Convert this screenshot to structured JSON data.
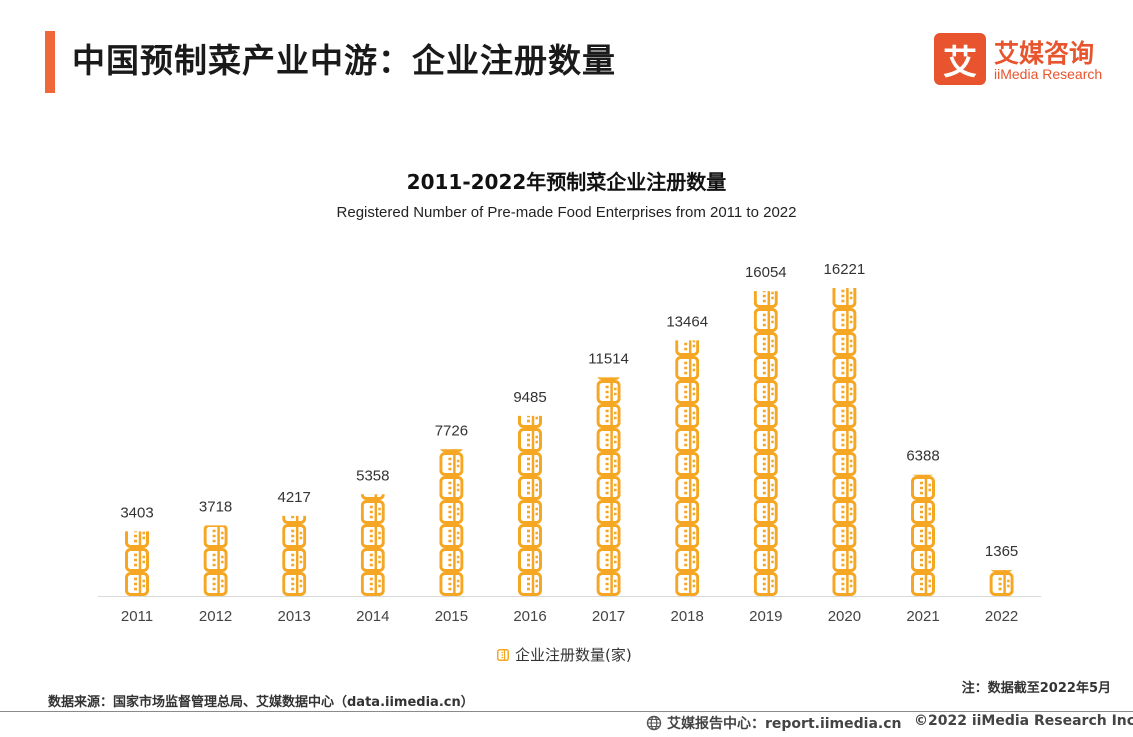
{
  "header": {
    "title": "中国预制菜产业中游：企业注册数量",
    "accent_color": "#F0683A"
  },
  "logo": {
    "mark": "艾",
    "name_cn": "艾媒咨询",
    "name_en": "iiMedia Research",
    "color": "#E8542D"
  },
  "chart_data": {
    "type": "bar",
    "title": "2011-2022年预制菜企业注册数量",
    "subtitle": "Registered Number of Pre-made Food Enterprises from 2011 to 2022",
    "categories": [
      "2011",
      "2012",
      "2013",
      "2014",
      "2015",
      "2016",
      "2017",
      "2018",
      "2019",
      "2020",
      "2021",
      "2022"
    ],
    "series": [
      {
        "name": "企业注册数量(家)",
        "values": [
          3403,
          3718,
          4217,
          5358,
          7726,
          9485,
          11514,
          13464,
          16054,
          16221,
          6388,
          1365
        ],
        "color": "#F5A623"
      }
    ],
    "ylim": [
      0,
      17000
    ],
    "grid": false,
    "legend": "bottom"
  },
  "footnote": "注：数据截至2022年5月",
  "source": "数据来源：国家市场监督管理总局、艾媒数据中心（data.iimedia.cn）",
  "footer": {
    "report_center": "艾媒报告中心：report.iimedia.cn",
    "copyright": "©2022  iiMedia Research  Inc",
    "globe_icon": "globe-icon"
  }
}
